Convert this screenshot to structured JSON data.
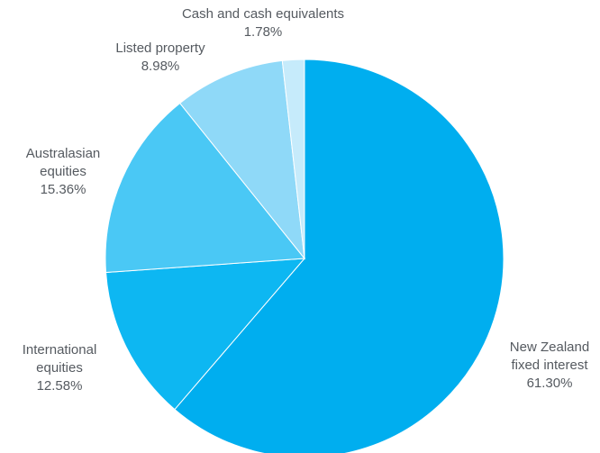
{
  "chart_data": {
    "type": "pie",
    "title": "",
    "start_angle_deg": 0,
    "direction": "clockwise",
    "slices": [
      {
        "name": "New Zealand fixed interest",
        "label_lines": [
          "New Zealand",
          "fixed interest"
        ],
        "percent_label": "61.30%",
        "value": 61.3,
        "color": "#00aeef"
      },
      {
        "name": "International equities",
        "label_lines": [
          "International",
          "equities"
        ],
        "percent_label": "12.58%",
        "value": 12.58,
        "color": "#0db7f2"
      },
      {
        "name": "Australasian equities",
        "label_lines": [
          "Australasian",
          "equities"
        ],
        "percent_label": "15.36%",
        "value": 15.36,
        "color": "#4ac8f5"
      },
      {
        "name": "Listed property",
        "label_lines": [
          "Listed property"
        ],
        "percent_label": "8.98%",
        "value": 8.98,
        "color": "#8fd9f8"
      },
      {
        "name": "Cash and cash equivalents",
        "label_lines": [
          "Cash and cash equivalents"
        ],
        "percent_label": "1.78%",
        "value": 1.78,
        "color": "#c6ebfb"
      }
    ]
  }
}
